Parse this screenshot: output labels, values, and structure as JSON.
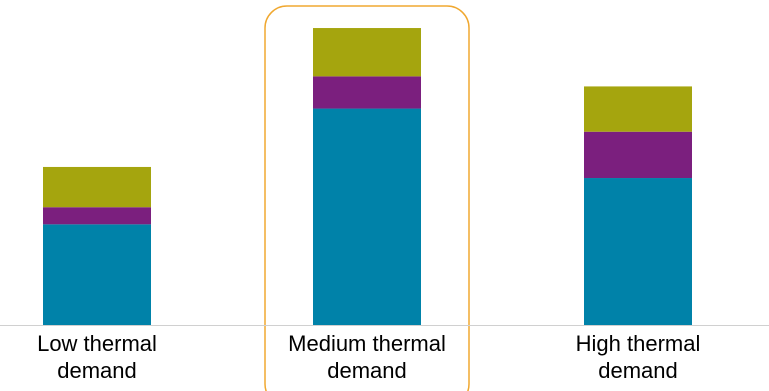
{
  "chart_data": {
    "type": "bar",
    "stacked": true,
    "categories": [
      "Low thermal demand",
      "Medium thermal demand",
      "High thermal demand"
    ],
    "category_label_lines": [
      [
        "Low thermal",
        "demand"
      ],
      [
        "Medium thermal",
        "demand"
      ],
      [
        "High thermal",
        "demand"
      ]
    ],
    "series": [
      {
        "color": "#0082a9",
        "values": [
          100,
          215,
          146
        ]
      },
      {
        "color": "#7b1f7e",
        "values": [
          17,
          32,
          46
        ]
      },
      {
        "color": "#a5a50e",
        "values": [
          40,
          48,
          45
        ]
      }
    ],
    "ylim": [
      0,
      300
    ],
    "highlighted_category_index": 1,
    "highlight_color": "#f0a830",
    "axis_color": "#d0d0d0",
    "grid": false,
    "title": "",
    "xlabel": "",
    "ylabel": ""
  }
}
